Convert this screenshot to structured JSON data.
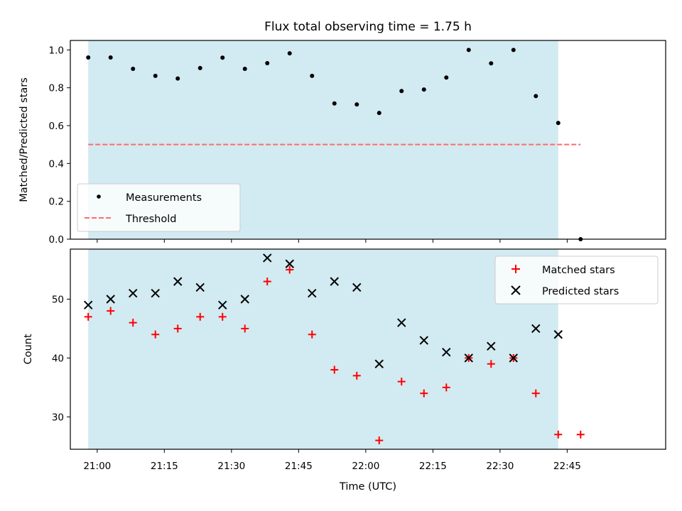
{
  "chart_data": {
    "type": "scatter",
    "title": "Flux total observing time = 1.75 h",
    "xlabel": "Time (UTC)",
    "x_ticks": [
      "21:00",
      "21:15",
      "21:30",
      "21:45",
      "22:00",
      "22:15",
      "22:30",
      "22:45"
    ],
    "x_range": [
      "20:54",
      "23:07"
    ],
    "shaded_interval": [
      "20:58",
      "22:43"
    ],
    "shade_color": "#add8e6",
    "times": [
      "20:58",
      "21:03",
      "21:08",
      "21:13",
      "21:18",
      "21:23",
      "21:28",
      "21:33",
      "21:38",
      "21:43",
      "21:48",
      "21:53",
      "21:58",
      "22:03",
      "22:08",
      "22:13",
      "22:18",
      "22:23",
      "22:28",
      "22:33",
      "22:38",
      "22:43",
      "22:48"
    ],
    "panels": [
      {
        "ylabel": "Matched/Predicted stars",
        "ylim": [
          0,
          1.05
        ],
        "yticks": [
          "0.0",
          "0.2",
          "0.4",
          "0.6",
          "0.8",
          "1.0"
        ],
        "legend_position": "lower-left",
        "series": [
          {
            "name": "Measurements",
            "marker": "dot",
            "color": "#000000",
            "values": [
              0.96,
              0.96,
              0.9,
              0.863,
              0.849,
              0.904,
              0.959,
              0.9,
              0.93,
              0.982,
              0.863,
              0.717,
              0.712,
              0.667,
              0.783,
              0.791,
              0.854,
              1.0,
              0.929,
              1.0,
              0.756,
              0.614,
              0.0
            ]
          }
        ],
        "lines": [
          {
            "name": "Threshold",
            "style": "dashed",
            "color": "#ff6b6b",
            "value": 0.5,
            "x_range": [
              "20:58",
              "22:48"
            ]
          }
        ]
      },
      {
        "ylabel": "Count",
        "ylim": [
          24.5,
          58.5
        ],
        "yticks": [
          "30",
          "40",
          "50"
        ],
        "legend_position": "upper-right",
        "series": [
          {
            "name": "Matched stars",
            "marker": "plus",
            "color": "#ff0000",
            "values": [
              47,
              48,
              46,
              44,
              45,
              47,
              47,
              45,
              53,
              55,
              44,
              38,
              37,
              26,
              36,
              34,
              35,
              40,
              39,
              40,
              34,
              27,
              27
            ]
          },
          {
            "name": "Predicted stars",
            "marker": "x",
            "color": "#000000",
            "values": [
              49,
              50,
              51,
              51,
              53,
              52,
              49,
              50,
              57,
              56,
              51,
              53,
              52,
              39,
              46,
              43,
              41,
              40,
              42,
              40,
              45,
              44,
              null
            ]
          }
        ]
      }
    ]
  }
}
